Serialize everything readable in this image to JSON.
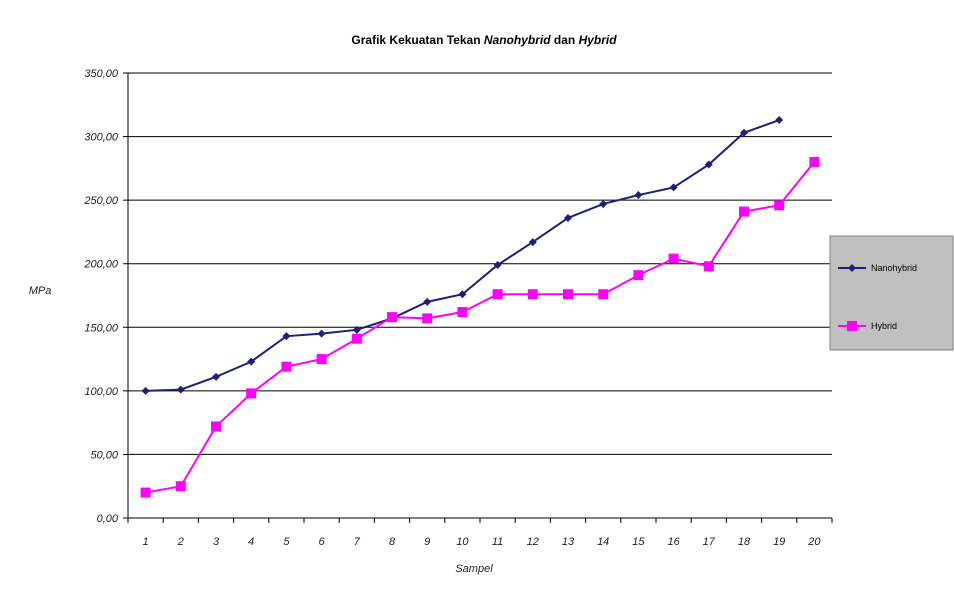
{
  "chart_data": {
    "type": "line",
    "title": "Grafik Kekuatan Tekan Nanohybrid dan Hybrid",
    "title_parts": [
      {
        "text": "Grafik Kekuatan Tekan ",
        "italic": false
      },
      {
        "text": "Nanohybrid",
        "italic": true
      },
      {
        "text": " dan ",
        "italic": false
      },
      {
        "text": "Hybrid",
        "italic": true
      }
    ],
    "xlabel": "Sampel",
    "ylabel": "MPa",
    "ylim": [
      0,
      350
    ],
    "yticks": [
      0,
      50,
      100,
      150,
      200,
      250,
      300,
      350
    ],
    "ytick_labels": [
      "0,00",
      "50,00",
      "100,00",
      "150,00",
      "200,00",
      "250,00",
      "300,00",
      "350,00"
    ],
    "categories": [
      "1",
      "2",
      "3",
      "4",
      "5",
      "6",
      "7",
      "8",
      "9",
      "10",
      "11",
      "12",
      "13",
      "14",
      "15",
      "16",
      "17",
      "18",
      "19",
      "20"
    ],
    "grid": "horizontal",
    "legend_position": "right",
    "series": [
      {
        "name": "Nanohybrid",
        "color": "#1f1f7a",
        "marker": "diamond",
        "values": [
          100,
          101,
          111,
          123,
          143,
          145,
          148,
          157,
          170,
          176,
          199,
          217,
          236,
          247,
          254,
          260,
          278,
          303,
          313,
          null
        ]
      },
      {
        "name": "Hybrid",
        "color": "#ff00ff",
        "marker": "square",
        "values": [
          20,
          25,
          72,
          98,
          119,
          125,
          141,
          158,
          157,
          162,
          176,
          176,
          176,
          176,
          191,
          204,
          198,
          241,
          246,
          280
        ]
      }
    ]
  }
}
